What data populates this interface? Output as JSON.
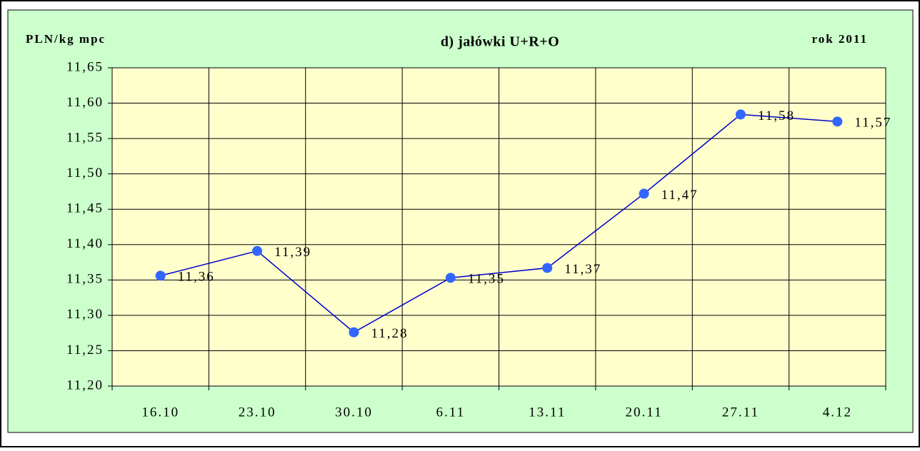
{
  "chart_data": {
    "type": "line",
    "title": "d) jałówki U+R+O",
    "y_label": "PLN/kg mpc",
    "annotation": "rok 2011",
    "categories": [
      "16.10",
      "23.10",
      "30.10",
      "6.11",
      "13.11",
      "20.11",
      "27.11",
      "4.12"
    ],
    "series": [
      {
        "name": "jałówki U+R+O",
        "color": "#0000cc",
        "marker_color": "#3366ff",
        "values": [
          11.356,
          11.391,
          11.276,
          11.353,
          11.367,
          11.472,
          11.584,
          11.574
        ],
        "value_labels": [
          "11,36",
          "11,39",
          "11,28",
          "11,35",
          "11,37",
          "11,47",
          "11,58",
          "11,57"
        ]
      }
    ],
    "ylim": [
      11.2,
      11.65
    ],
    "yticks": [
      {
        "value": 11.2,
        "label": "11,20"
      },
      {
        "value": 11.25,
        "label": "11,25"
      },
      {
        "value": 11.3,
        "label": "11,30"
      },
      {
        "value": 11.35,
        "label": "11,35"
      },
      {
        "value": 11.4,
        "label": "11,40"
      },
      {
        "value": 11.45,
        "label": "11,45"
      },
      {
        "value": 11.5,
        "label": "11,50"
      },
      {
        "value": 11.55,
        "label": "11,55"
      },
      {
        "value": 11.6,
        "label": "11,60"
      },
      {
        "value": 11.65,
        "label": "11,65"
      }
    ],
    "grid": true
  }
}
